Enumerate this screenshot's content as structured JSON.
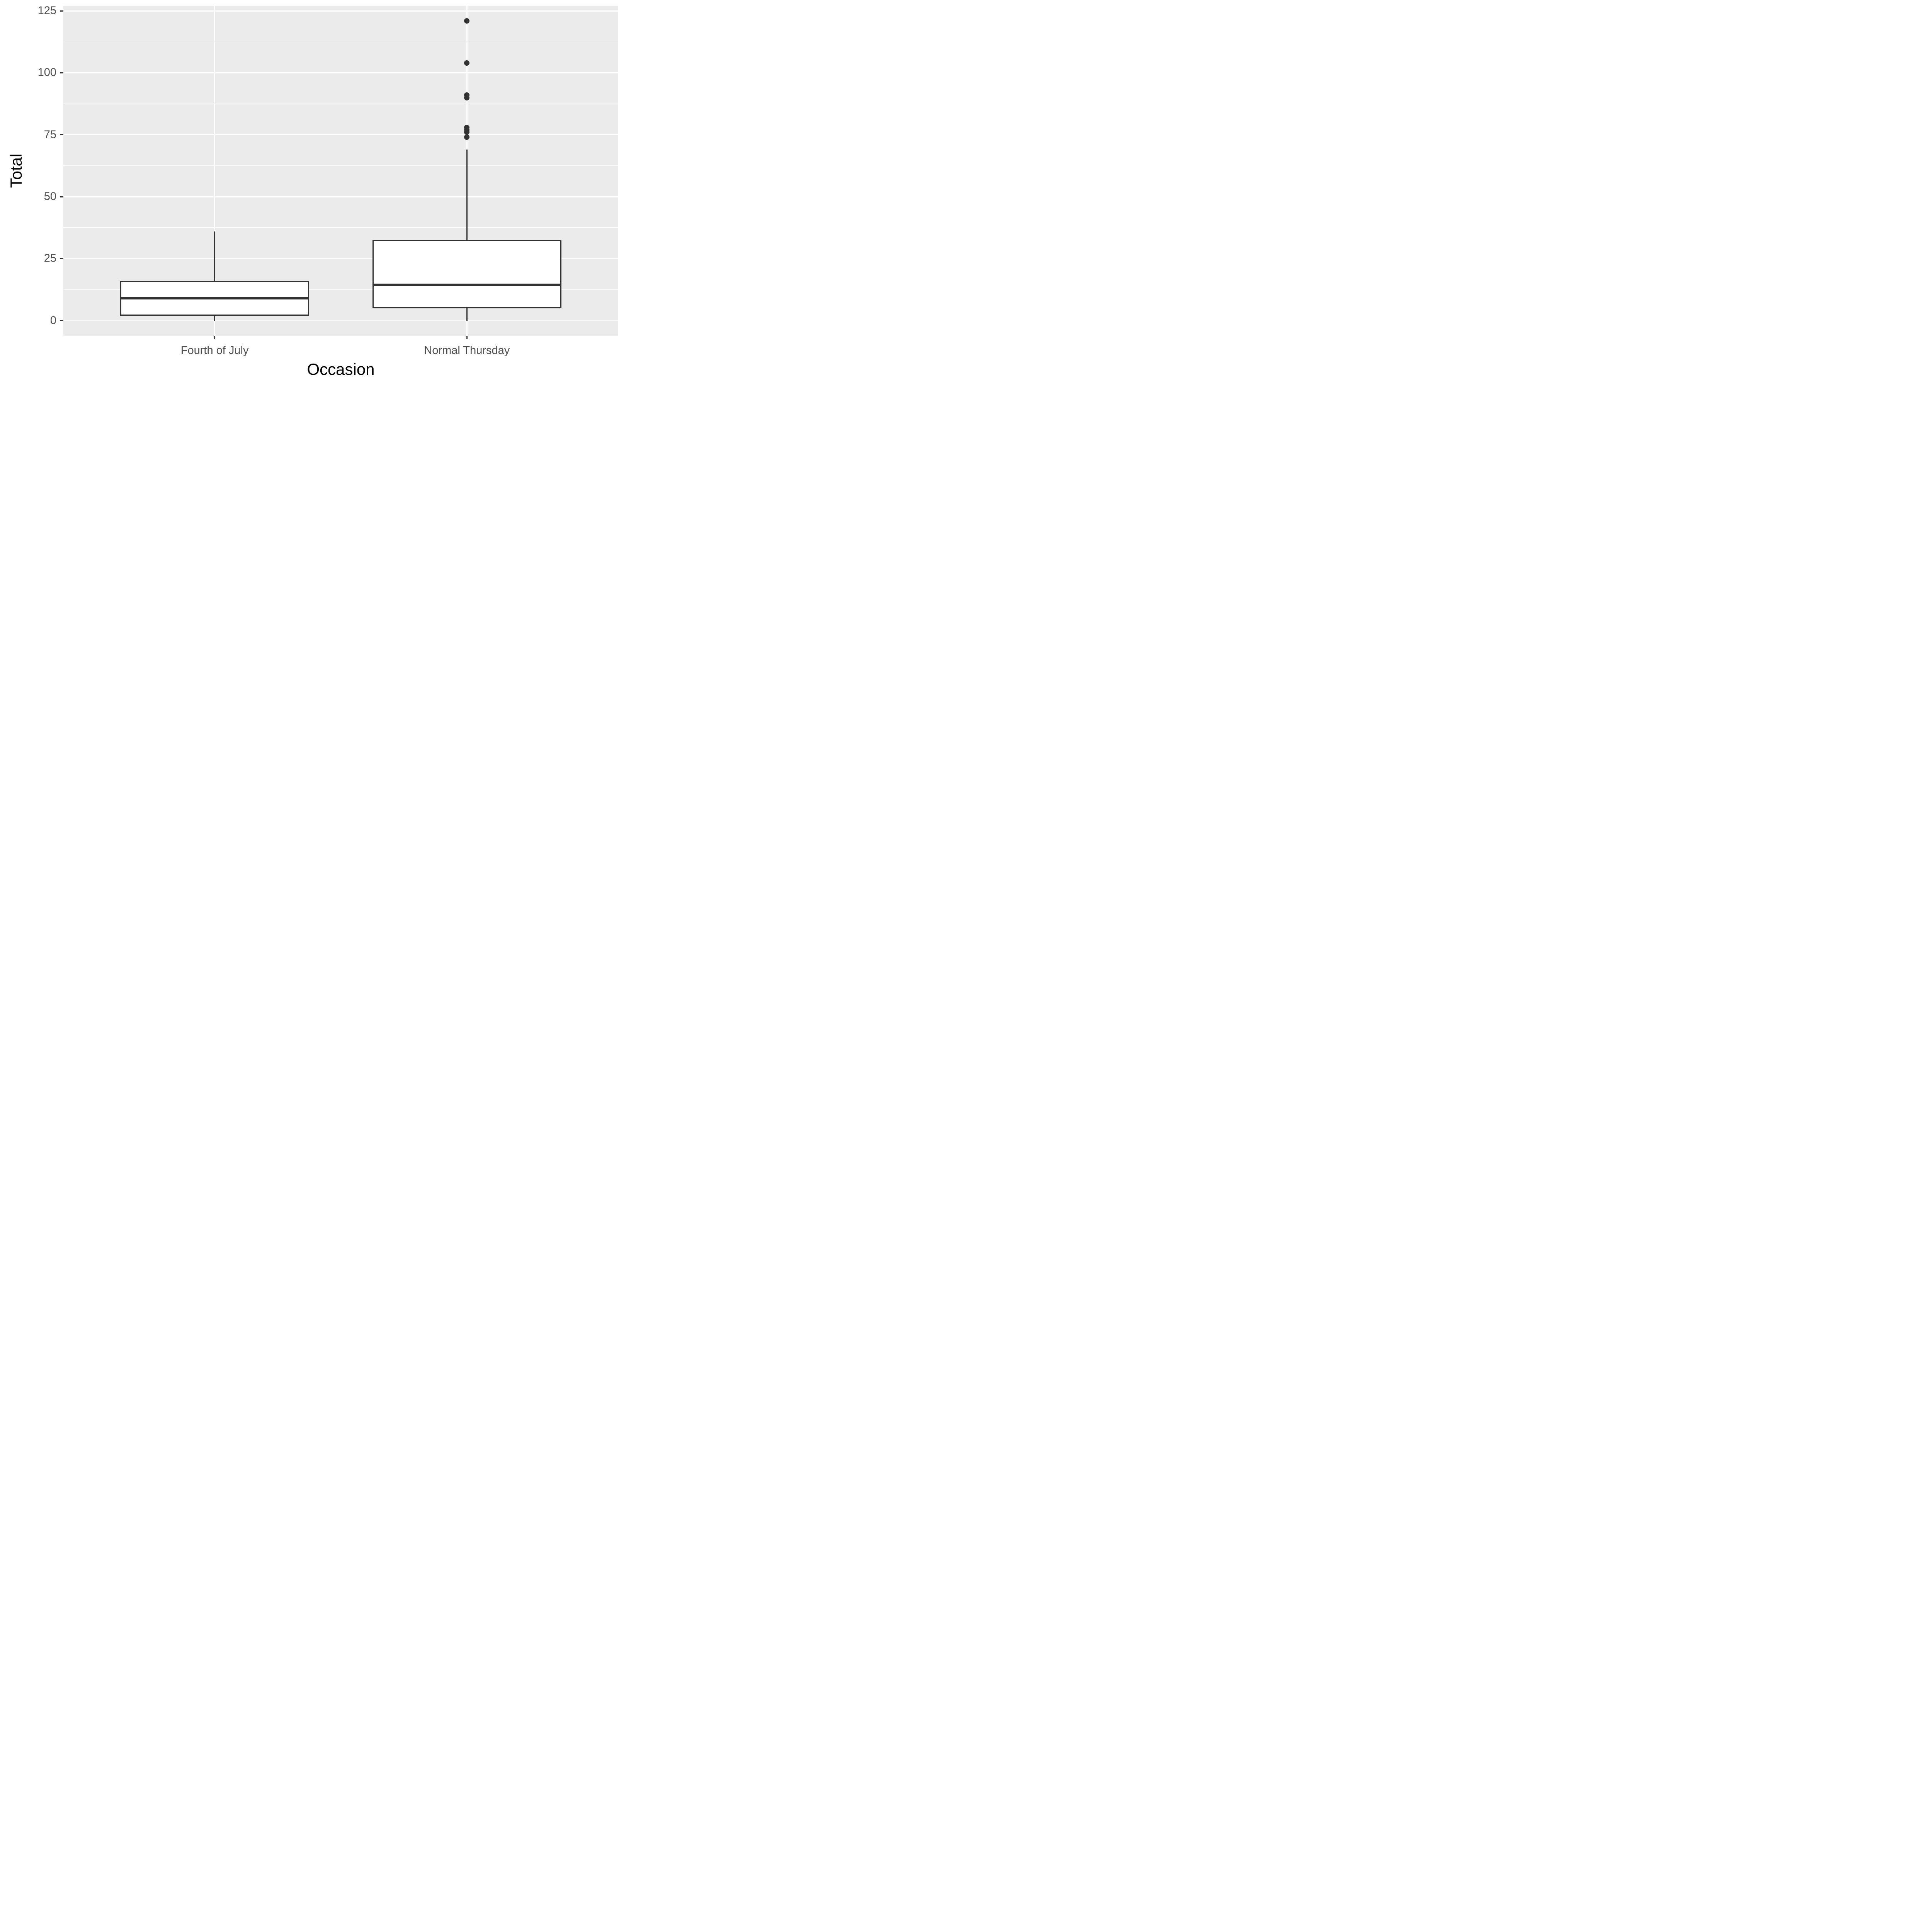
{
  "chart_data": {
    "type": "boxplot",
    "title": "",
    "xlabel": "Occasion",
    "ylabel": "Total",
    "categories": [
      "Fourth of July",
      "Normal Thursday"
    ],
    "series": [
      {
        "name": "Fourth of July",
        "min": 0,
        "q1": 2,
        "median": 9,
        "q3": 16,
        "whisker_high": 36,
        "outliers": []
      },
      {
        "name": "Normal Thursday",
        "min": 0,
        "q1": 5,
        "median": 14.5,
        "q3": 32.5,
        "whisker_high": 69,
        "outliers": [
          74,
          76,
          77,
          78,
          90,
          91,
          104,
          121
        ]
      }
    ],
    "ylim": [
      -6.05,
      127.05
    ],
    "y_major_ticks": [
      0,
      25,
      50,
      75,
      100,
      125
    ],
    "y_minor_ticks": [
      12.5,
      37.5,
      62.5,
      87.5,
      112.5
    ],
    "grid": true,
    "legend": false,
    "style": {
      "panel_background": "#EBEBEB",
      "gridline_color": "#FFFFFF",
      "box_fill": "#FFFFFF",
      "box_stroke": "#333333",
      "tick_color": "#333333",
      "tick_label_color": "#4D4D4D",
      "axis_title_color": "#000000"
    }
  }
}
